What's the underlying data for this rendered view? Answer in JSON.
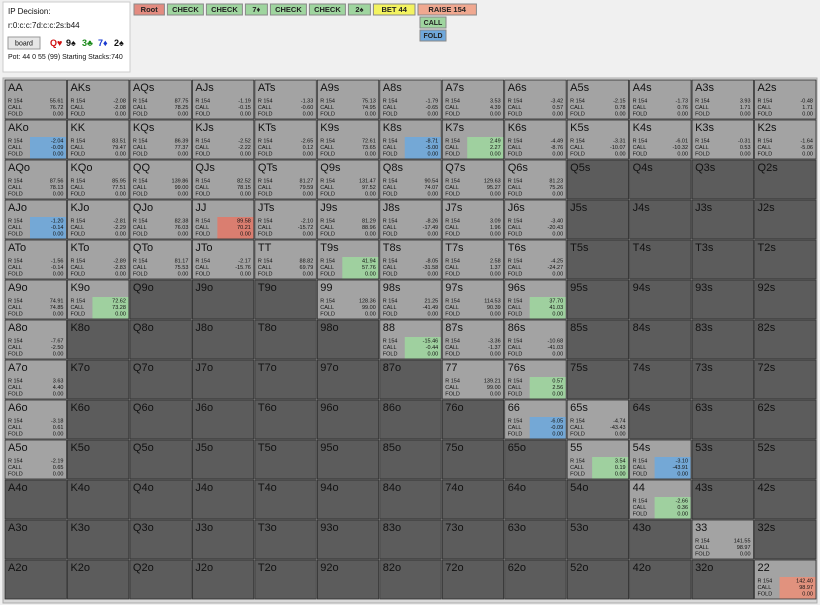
{
  "header": {
    "title": "IP Decision:",
    "path": "r:0:c:c:7d:c:c:2s:b44",
    "board_button": "board",
    "cards": [
      {
        "text": "Q♥",
        "color": "#d01010"
      },
      {
        "text": "9♠",
        "color": "#111111"
      },
      {
        "text": "3♣",
        "color": "#1a8a1a"
      },
      {
        "text": "7♦",
        "color": "#1a3ad0"
      },
      {
        "text": "2♠",
        "color": "#111111"
      }
    ],
    "pot": "Pot: 44 0 55 (99) Starting Stacks:740",
    "buttons": [
      {
        "label": "Root",
        "color": "#e38b80"
      },
      {
        "label": "CHECK",
        "color": "#9fd59f"
      },
      {
        "label": "CHECK",
        "color": "#9fd59f"
      },
      {
        "label": "7♦",
        "color": "#9fd59f"
      },
      {
        "label": "CHECK",
        "color": "#9fd59f"
      },
      {
        "label": "CHECK",
        "color": "#9fd59f"
      },
      {
        "label": "2♠",
        "color": "#9fd59f"
      },
      {
        "label": "BET 44",
        "color": "#f3f360"
      },
      {
        "label": "RAISE 154",
        "color": "#f0a890"
      }
    ],
    "options": [
      {
        "label": "CALL",
        "color": "#9fd59f"
      },
      {
        "label": "FOLD",
        "color": "#6fa8dc"
      }
    ]
  },
  "grid": {
    "actions": [
      "R 154",
      "CALL",
      "FOLD"
    ],
    "rows": [
      [
        {
          "hand": "AA",
          "ev": [
            "55.61",
            "76.72",
            "0.00"
          ]
        },
        {
          "hand": "AKs",
          "ev": [
            "-2.08",
            "-2.08",
            "0.00"
          ]
        },
        {
          "hand": "AQs",
          "ev": [
            "87.75",
            "78.25",
            "0.00"
          ]
        },
        {
          "hand": "AJs",
          "ev": [
            "-1.19",
            "-0.15",
            "0.00"
          ]
        },
        {
          "hand": "ATs",
          "ev": [
            "-1.33",
            "-0.60",
            "0.00"
          ]
        },
        {
          "hand": "A9s",
          "ev": [
            "75.13",
            "74.95",
            "0.00"
          ]
        },
        {
          "hand": "A8s",
          "ev": [
            "-1.79",
            "-0.65",
            "0.00"
          ]
        },
        {
          "hand": "A7s",
          "ev": [
            "3.53",
            "4.39",
            "0.00"
          ]
        },
        {
          "hand": "A6s",
          "ev": [
            "-3.42",
            "0.57",
            "0.00"
          ]
        },
        {
          "hand": "A5s",
          "ev": [
            "-2.15",
            "0.78",
            "0.00"
          ]
        },
        {
          "hand": "A4s",
          "ev": [
            "-1.73",
            "0.76",
            "0.00"
          ]
        },
        {
          "hand": "A3s",
          "ev": [
            "3.93",
            "1.71",
            "0.00"
          ]
        },
        {
          "hand": "A2s",
          "ev": [
            "-0.48",
            "1.71",
            "0.00"
          ]
        }
      ],
      [
        {
          "hand": "AKo",
          "ev": [
            "-2.04",
            "-0.09",
            "0.00"
          ],
          "tint": "#6fa8dc"
        },
        {
          "hand": "KK",
          "ev": [
            "83.51",
            "79.47",
            "0.00"
          ]
        },
        {
          "hand": "KQs",
          "ev": [
            "86.39",
            "77.37",
            "0.00"
          ]
        },
        {
          "hand": "KJs",
          "ev": [
            "-2.52",
            "-2.22",
            "0.00"
          ]
        },
        {
          "hand": "KTs",
          "ev": [
            "-2.65",
            "0.12",
            "0.00"
          ]
        },
        {
          "hand": "K9s",
          "ev": [
            "72.61",
            "73.65",
            "0.00"
          ]
        },
        {
          "hand": "K8s",
          "ev": [
            "-8.71",
            "-5.00",
            "0.00"
          ],
          "tint": "#6fa8dc"
        },
        {
          "hand": "K7s",
          "ev": [
            "2.49",
            "2.27",
            "0.00"
          ],
          "tint": "#9fd59f"
        },
        {
          "hand": "K6s",
          "ev": [
            "-4.49",
            "-8.76",
            "0.00"
          ]
        },
        {
          "hand": "K5s",
          "ev": [
            "-3.31",
            "-10.07",
            "0.00"
          ]
        },
        {
          "hand": "K4s",
          "ev": [
            "-6.01",
            "-10.32",
            "0.00"
          ]
        },
        {
          "hand": "K3s",
          "ev": [
            "-0.31",
            "0.53",
            "0.00"
          ]
        },
        {
          "hand": "K2s",
          "ev": [
            "-1.64",
            "-5.06",
            "0.00"
          ]
        }
      ],
      [
        {
          "hand": "AQo",
          "ev": [
            "87.56",
            "78.13",
            "0.00"
          ]
        },
        {
          "hand": "KQo",
          "ev": [
            "85.95",
            "77.51",
            "0.00"
          ]
        },
        {
          "hand": "QQ",
          "ev": [
            "139.86",
            "99.00",
            "0.00"
          ]
        },
        {
          "hand": "QJs",
          "ev": [
            "82.52",
            "78.15",
            "0.00"
          ]
        },
        {
          "hand": "QTs",
          "ev": [
            "81.27",
            "79.59",
            "0.00"
          ]
        },
        {
          "hand": "Q9s",
          "ev": [
            "131.47",
            "97.52",
            "0.00"
          ]
        },
        {
          "hand": "Q8s",
          "ev": [
            "90.54",
            "74.07",
            "0.00"
          ]
        },
        {
          "hand": "Q7s",
          "ev": [
            "129.63",
            "95.27",
            "0.00"
          ]
        },
        {
          "hand": "Q6s",
          "ev": [
            "81.23",
            "75.26",
            "0.00"
          ]
        },
        {
          "hand": "Q5s"
        },
        {
          "hand": "Q4s"
        },
        {
          "hand": "Q3s"
        },
        {
          "hand": "Q2s"
        }
      ],
      [
        {
          "hand": "AJo",
          "ev": [
            "-1.20",
            "-0.14",
            "0.00"
          ],
          "tint": "#6fa8dc"
        },
        {
          "hand": "KJo",
          "ev": [
            "-2.81",
            "-2.29",
            "0.00"
          ]
        },
        {
          "hand": "QJo",
          "ev": [
            "82.38",
            "76.03",
            "0.00"
          ]
        },
        {
          "hand": "JJ",
          "ev": [
            "89.58",
            "70.21",
            "0.00"
          ],
          "tint": "#e07a6a"
        },
        {
          "hand": "JTs",
          "ev": [
            "-2.10",
            "-15.72",
            "0.00"
          ]
        },
        {
          "hand": "J9s",
          "ev": [
            "81.29",
            "88.96",
            "0.00"
          ]
        },
        {
          "hand": "J8s",
          "ev": [
            "-8.26",
            "-17.49",
            "0.00"
          ]
        },
        {
          "hand": "J7s",
          "ev": [
            "3.09",
            "1.96",
            "0.00"
          ]
        },
        {
          "hand": "J6s",
          "ev": [
            "-3.40",
            "-20.43",
            "0.00"
          ]
        },
        {
          "hand": "J5s"
        },
        {
          "hand": "J4s"
        },
        {
          "hand": "J3s"
        },
        {
          "hand": "J2s"
        }
      ],
      [
        {
          "hand": "ATo",
          "ev": [
            "-1.56",
            "-0.14",
            "0.00"
          ]
        },
        {
          "hand": "KTo",
          "ev": [
            "-2.89",
            "-2.83",
            "0.00"
          ]
        },
        {
          "hand": "QTo",
          "ev": [
            "81.17",
            "75.53",
            "0.00"
          ]
        },
        {
          "hand": "JTo",
          "ev": [
            "-2.17",
            "-15.76",
            "0.00"
          ]
        },
        {
          "hand": "TT",
          "ev": [
            "88.82",
            "69.79",
            "0.00"
          ]
        },
        {
          "hand": "T9s",
          "ev": [
            "41.94",
            "57.76",
            "0.00"
          ],
          "tint": "#9fd59f"
        },
        {
          "hand": "T8s",
          "ev": [
            "-8.05",
            "-31.58",
            "0.00"
          ]
        },
        {
          "hand": "T7s",
          "ev": [
            "2.58",
            "1.37",
            "0.00"
          ]
        },
        {
          "hand": "T6s",
          "ev": [
            "-4.25",
            "-24.27",
            "0.00"
          ]
        },
        {
          "hand": "T5s"
        },
        {
          "hand": "T4s"
        },
        {
          "hand": "T3s"
        },
        {
          "hand": "T2s"
        }
      ],
      [
        {
          "hand": "A9o",
          "ev": [
            "74.91",
            "74.85",
            "0.00"
          ]
        },
        {
          "hand": "K9o",
          "ev": [
            "72.62",
            "73.28",
            "0.00"
          ],
          "tint": "#9fd59f"
        },
        {
          "hand": "Q9o"
        },
        {
          "hand": "J9o"
        },
        {
          "hand": "T9o"
        },
        {
          "hand": "99",
          "ev": [
            "128.36",
            "99.00",
            "0.00"
          ]
        },
        {
          "hand": "98s",
          "ev": [
            "21.25",
            "-41.49",
            "0.00"
          ]
        },
        {
          "hand": "97s",
          "ev": [
            "114.53",
            "90.39",
            "0.00"
          ]
        },
        {
          "hand": "96s",
          "ev": [
            "37.70",
            "41.03",
            "0.00"
          ],
          "tint": "#9fd59f"
        },
        {
          "hand": "95s"
        },
        {
          "hand": "94s"
        },
        {
          "hand": "93s"
        },
        {
          "hand": "92s"
        }
      ],
      [
        {
          "hand": "A8o",
          "ev": [
            "-7.67",
            "-2.50",
            "0.00"
          ]
        },
        {
          "hand": "K8o"
        },
        {
          "hand": "Q8o"
        },
        {
          "hand": "J8o"
        },
        {
          "hand": "T8o"
        },
        {
          "hand": "98o"
        },
        {
          "hand": "88",
          "ev": [
            "-15.46",
            "-0.44",
            "0.00"
          ],
          "tint": "#9fd59f"
        },
        {
          "hand": "87s",
          "ev": [
            "-3.36",
            "-1.37",
            "0.00"
          ]
        },
        {
          "hand": "86s",
          "ev": [
            "-10.68",
            "-41.03",
            "0.00"
          ]
        },
        {
          "hand": "85s"
        },
        {
          "hand": "84s"
        },
        {
          "hand": "83s"
        },
        {
          "hand": "82s"
        }
      ],
      [
        {
          "hand": "A7o",
          "ev": [
            "3.63",
            "4.40",
            "0.00"
          ]
        },
        {
          "hand": "K7o"
        },
        {
          "hand": "Q7o"
        },
        {
          "hand": "J7o"
        },
        {
          "hand": "T7o"
        },
        {
          "hand": "97o"
        },
        {
          "hand": "87o"
        },
        {
          "hand": "77",
          "ev": [
            "139.21",
            "99.00",
            "0.00"
          ]
        },
        {
          "hand": "76s",
          "ev": [
            "0.57",
            "2.56",
            "0.00"
          ],
          "tint": "#9fd59f"
        },
        {
          "hand": "75s"
        },
        {
          "hand": "74s"
        },
        {
          "hand": "73s"
        },
        {
          "hand": "72s"
        }
      ],
      [
        {
          "hand": "A6o",
          "ev": [
            "-3.18",
            "0.61",
            "0.00"
          ]
        },
        {
          "hand": "K6o"
        },
        {
          "hand": "Q6o"
        },
        {
          "hand": "J6o"
        },
        {
          "hand": "T6o"
        },
        {
          "hand": "96o"
        },
        {
          "hand": "86o"
        },
        {
          "hand": "76o"
        },
        {
          "hand": "66",
          "ev": [
            "-6.05",
            "-0.09",
            "0.00"
          ],
          "tint": "#6fa8dc"
        },
        {
          "hand": "65s",
          "ev": [
            "-4.74",
            "-43.43",
            "0.00"
          ]
        },
        {
          "hand": "64s"
        },
        {
          "hand": "63s"
        },
        {
          "hand": "62s"
        }
      ],
      [
        {
          "hand": "A5o",
          "ev": [
            "-2.19",
            "0.65",
            "0.00"
          ]
        },
        {
          "hand": "K5o"
        },
        {
          "hand": "Q5o"
        },
        {
          "hand": "J5o"
        },
        {
          "hand": "T5o"
        },
        {
          "hand": "95o"
        },
        {
          "hand": "85o"
        },
        {
          "hand": "75o"
        },
        {
          "hand": "65o"
        },
        {
          "hand": "55",
          "ev": [
            "3.54",
            "0.19",
            "0.00"
          ],
          "tint": "#9fd59f"
        },
        {
          "hand": "54s",
          "ev": [
            "-3.10",
            "-43.91",
            "0.00"
          ],
          "tint": "#6fa8dc"
        },
        {
          "hand": "53s"
        },
        {
          "hand": "52s"
        }
      ],
      [
        {
          "hand": "A4o"
        },
        {
          "hand": "K4o"
        },
        {
          "hand": "Q4o"
        },
        {
          "hand": "J4o"
        },
        {
          "hand": "T4o"
        },
        {
          "hand": "94o"
        },
        {
          "hand": "84o"
        },
        {
          "hand": "74o"
        },
        {
          "hand": "64o"
        },
        {
          "hand": "54o"
        },
        {
          "hand": "44",
          "ev": [
            "-2.66",
            "0.36",
            "0.00"
          ],
          "tint": "#9fd59f"
        },
        {
          "hand": "43s"
        },
        {
          "hand": "42s"
        }
      ],
      [
        {
          "hand": "A3o"
        },
        {
          "hand": "K3o"
        },
        {
          "hand": "Q3o"
        },
        {
          "hand": "J3o"
        },
        {
          "hand": "T3o"
        },
        {
          "hand": "93o"
        },
        {
          "hand": "83o"
        },
        {
          "hand": "73o"
        },
        {
          "hand": "63o"
        },
        {
          "hand": "53o"
        },
        {
          "hand": "43o"
        },
        {
          "hand": "33",
          "ev": [
            "141.55",
            "98.97",
            "0.00"
          ]
        },
        {
          "hand": "32s"
        }
      ],
      [
        {
          "hand": "A2o"
        },
        {
          "hand": "K2o"
        },
        {
          "hand": "Q2o"
        },
        {
          "hand": "J2o"
        },
        {
          "hand": "T2o"
        },
        {
          "hand": "92o"
        },
        {
          "hand": "82o"
        },
        {
          "hand": "72o"
        },
        {
          "hand": "62o"
        },
        {
          "hand": "52o"
        },
        {
          "hand": "42o"
        },
        {
          "hand": "32o"
        },
        {
          "hand": "22",
          "ev": [
            "142.40",
            "98.97",
            "0.00"
          ],
          "tint": "#e8907a"
        }
      ]
    ]
  }
}
